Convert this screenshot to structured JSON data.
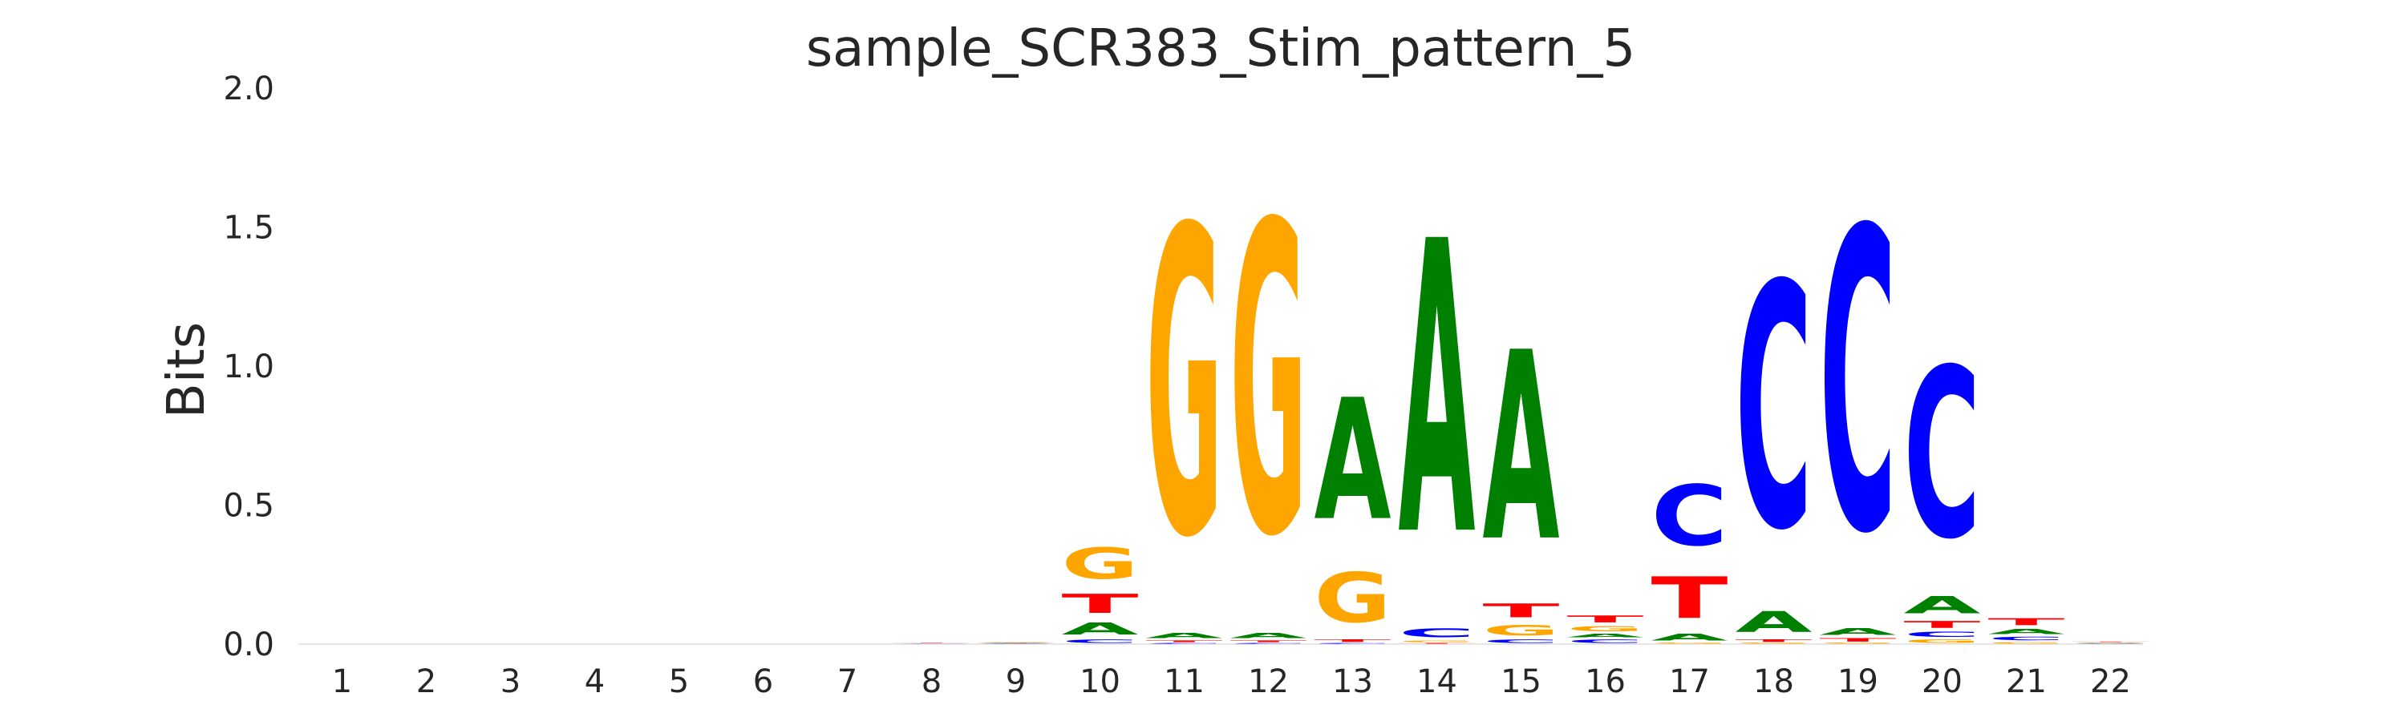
{
  "chart_data": {
    "type": "sequence-logo",
    "title": "sample_SCR383_Stim_pattern_5",
    "ylabel": "Bits",
    "xlabel": "",
    "ylim": [
      0,
      2
    ],
    "yticks": [
      "0.0",
      "0.5",
      "1.0",
      "1.5",
      "2.0"
    ],
    "positions": [
      "1",
      "2",
      "3",
      "4",
      "5",
      "6",
      "7",
      "8",
      "9",
      "10",
      "11",
      "12",
      "13",
      "14",
      "15",
      "16",
      "17",
      "18",
      "19",
      "20",
      "21",
      "22"
    ],
    "colors": {
      "A": "#008000",
      "C": "#0000ff",
      "G": "#ffa500",
      "T": "#ff0000"
    },
    "stacks": [
      [],
      [],
      [],
      [],
      [],
      [],
      [],
      [
        {
          "base": "A",
          "bits": 0.001
        },
        {
          "base": "C",
          "bits": 0.001
        },
        {
          "base": "G",
          "bits": 0.001
        },
        {
          "base": "T",
          "bits": 0.002
        }
      ],
      [
        {
          "base": "C",
          "bits": 0.002
        },
        {
          "base": "T",
          "bits": 0.002
        },
        {
          "base": "A",
          "bits": 0.003
        },
        {
          "base": "G",
          "bits": 0.004
        }
      ],
      [
        {
          "base": "C",
          "bits": 0.02
        },
        {
          "base": "A",
          "bits": 0.07
        },
        {
          "base": "T",
          "bits": 0.11
        },
        {
          "base": "G",
          "bits": 0.18
        }
      ],
      [
        {
          "base": "C",
          "bits": 0.005
        },
        {
          "base": "T",
          "bits": 0.01
        },
        {
          "base": "A",
          "bits": 0.03
        },
        {
          "base": "G",
          "bits": 1.77
        }
      ],
      [
        {
          "base": "C",
          "bits": 0.005
        },
        {
          "base": "T",
          "bits": 0.01
        },
        {
          "base": "A",
          "bits": 0.03
        },
        {
          "base": "G",
          "bits": 1.79
        }
      ],
      [
        {
          "base": "C",
          "bits": 0.005
        },
        {
          "base": "T",
          "bits": 0.015
        },
        {
          "base": "G",
          "bits": 0.29
        },
        {
          "base": "A",
          "bits": 0.7
        }
      ],
      [
        {
          "base": "T",
          "bits": 0.005
        },
        {
          "base": "G",
          "bits": 0.01
        },
        {
          "base": "C",
          "bits": 0.05
        },
        {
          "base": "A",
          "bits": 1.69
        }
      ],
      [
        {
          "base": "C",
          "bits": 0.02
        },
        {
          "base": "G",
          "bits": 0.06
        },
        {
          "base": "T",
          "bits": 0.08
        },
        {
          "base": "A",
          "bits": 1.09
        }
      ],
      [
        {
          "base": "C",
          "bits": 0.02
        },
        {
          "base": "A",
          "bits": 0.02
        },
        {
          "base": "G",
          "bits": 0.03
        },
        {
          "base": "T",
          "bits": 0.04
        }
      ],
      [
        {
          "base": "G",
          "bits": 0.005
        },
        {
          "base": "A",
          "bits": 0.04
        },
        {
          "base": "T",
          "bits": 0.24
        },
        {
          "base": "C",
          "bits": 0.35
        }
      ],
      [
        {
          "base": "G",
          "bits": 0.005
        },
        {
          "base": "T",
          "bits": 0.015
        },
        {
          "base": "A",
          "bits": 0.12
        },
        {
          "base": "C",
          "bits": 1.41
        }
      ],
      [
        {
          "base": "G",
          "bits": 0.005
        },
        {
          "base": "T",
          "bits": 0.02
        },
        {
          "base": "A",
          "bits": 0.04
        },
        {
          "base": "C",
          "bits": 1.74
        }
      ],
      [
        {
          "base": "G",
          "bits": 0.02
        },
        {
          "base": "C",
          "bits": 0.03
        },
        {
          "base": "T",
          "bits": 0.04
        },
        {
          "base": "A",
          "bits": 0.1
        },
        {
          "base": "C",
          "bits": 0.98
        }
      ],
      [
        {
          "base": "G",
          "bits": 0.01
        },
        {
          "base": "C",
          "bits": 0.02
        },
        {
          "base": "A",
          "bits": 0.03
        },
        {
          "base": "T",
          "bits": 0.04
        }
      ],
      [
        {
          "base": "C",
          "bits": 0.002
        },
        {
          "base": "A",
          "bits": 0.002
        },
        {
          "base": "G",
          "bits": 0.003
        },
        {
          "base": "T",
          "bits": 0.003
        }
      ]
    ]
  }
}
